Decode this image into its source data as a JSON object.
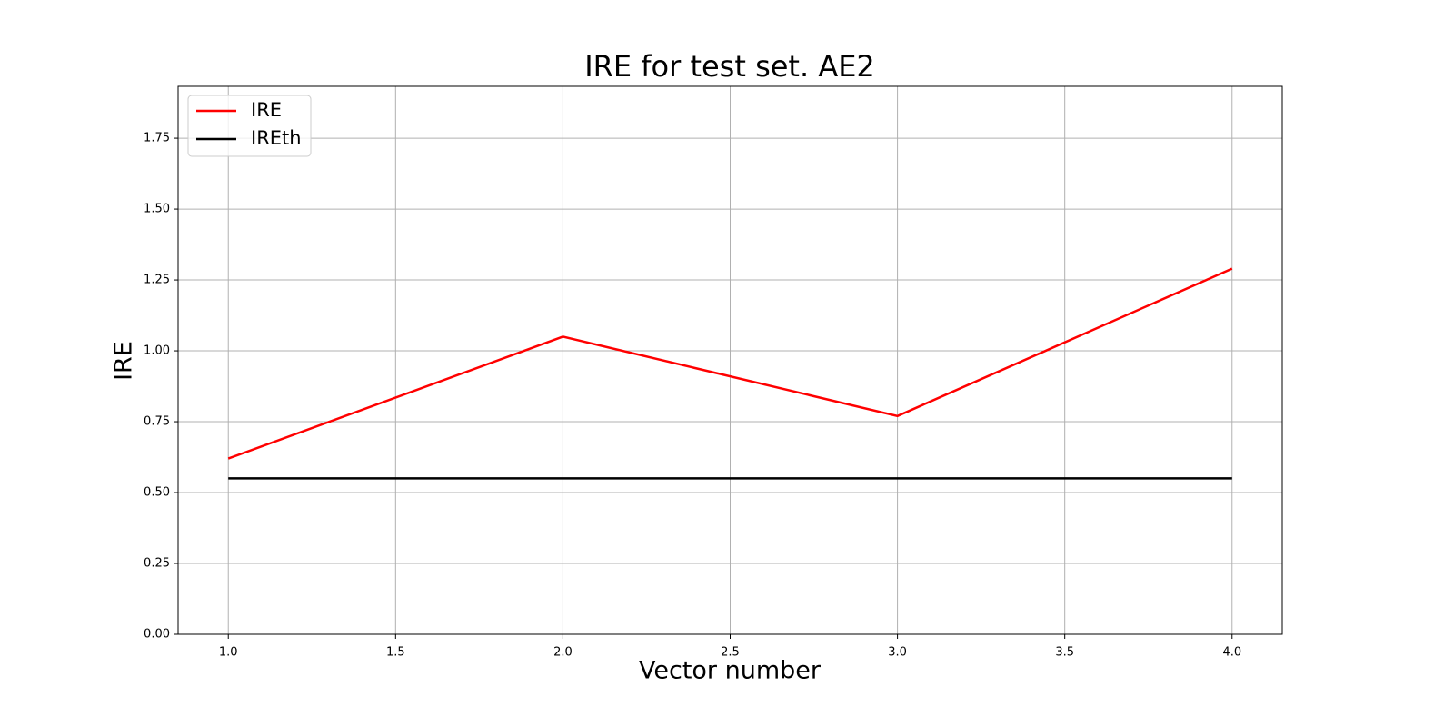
{
  "chart_data": {
    "type": "line",
    "title": "IRE for test set. AE2",
    "x_label": "Vector number",
    "y_label": "IRE",
    "x": [
      1,
      2,
      3,
      4
    ],
    "series": [
      {
        "name": "IRE",
        "color": "#ff0000",
        "values": [
          0.62,
          1.05,
          0.77,
          1.29
        ]
      },
      {
        "name": "IREth",
        "color": "#000000",
        "values": [
          0.55,
          0.55,
          0.55,
          0.55
        ]
      }
    ],
    "xlim": [
      0.85,
      4.15
    ],
    "xticks": [
      {
        "value": 1,
        "label": "1.0"
      },
      1.5,
      {
        "value": 2,
        "label": "2.0"
      },
      2.5,
      {
        "value": 3,
        "label": "3.0"
      },
      3.5,
      {
        "value": 4,
        "label": "4.0"
      }
    ],
    "ylim": [
      0,
      1.933
    ],
    "yticks": [
      {
        "value": 0,
        "label": "0.00"
      },
      0.25,
      {
        "value": 0.5,
        "label": "0.50"
      },
      0.75,
      {
        "value": 1,
        "label": "1.00"
      },
      1.25,
      {
        "value": 1.5,
        "label": "1.50"
      },
      1.75
    ],
    "grid": true,
    "legend": "upper left"
  }
}
